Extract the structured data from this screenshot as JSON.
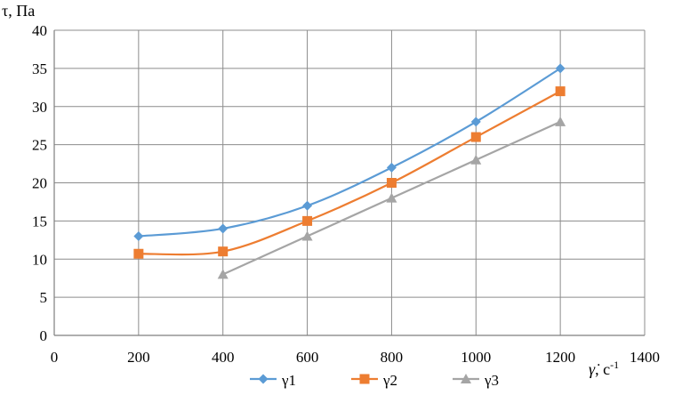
{
  "chart_data": {
    "type": "line",
    "ylabel": "τ, Па",
    "xlabel_main": "γ̇",
    "xlabel_unit": ", с",
    "xlabel_sup": "-1",
    "xlim": [
      0,
      1400
    ],
    "ylim": [
      0,
      40
    ],
    "xticks": [
      0,
      200,
      400,
      600,
      800,
      1000,
      1200,
      1400
    ],
    "yticks": [
      0,
      5,
      10,
      15,
      20,
      25,
      30,
      35,
      40
    ],
    "grid": true,
    "legend_position": "bottom",
    "series": [
      {
        "name": "γ1",
        "color": "#5b9bd5",
        "marker": "diamond",
        "points": [
          [
            200,
            13
          ],
          [
            400,
            14
          ],
          [
            600,
            17
          ],
          [
            800,
            22
          ],
          [
            1000,
            28
          ],
          [
            1200,
            35
          ]
        ]
      },
      {
        "name": "γ2",
        "color": "#ed7d31",
        "marker": "square",
        "points": [
          [
            200,
            10.7
          ],
          [
            400,
            11
          ],
          [
            600,
            15
          ],
          [
            800,
            20
          ],
          [
            1000,
            26
          ],
          [
            1200,
            32
          ]
        ]
      },
      {
        "name": "γ3",
        "color": "#a5a5a5",
        "marker": "triangle",
        "points": [
          [
            400,
            8
          ],
          [
            600,
            13
          ],
          [
            800,
            18
          ],
          [
            1000,
            23
          ],
          [
            1200,
            28
          ]
        ]
      }
    ]
  }
}
